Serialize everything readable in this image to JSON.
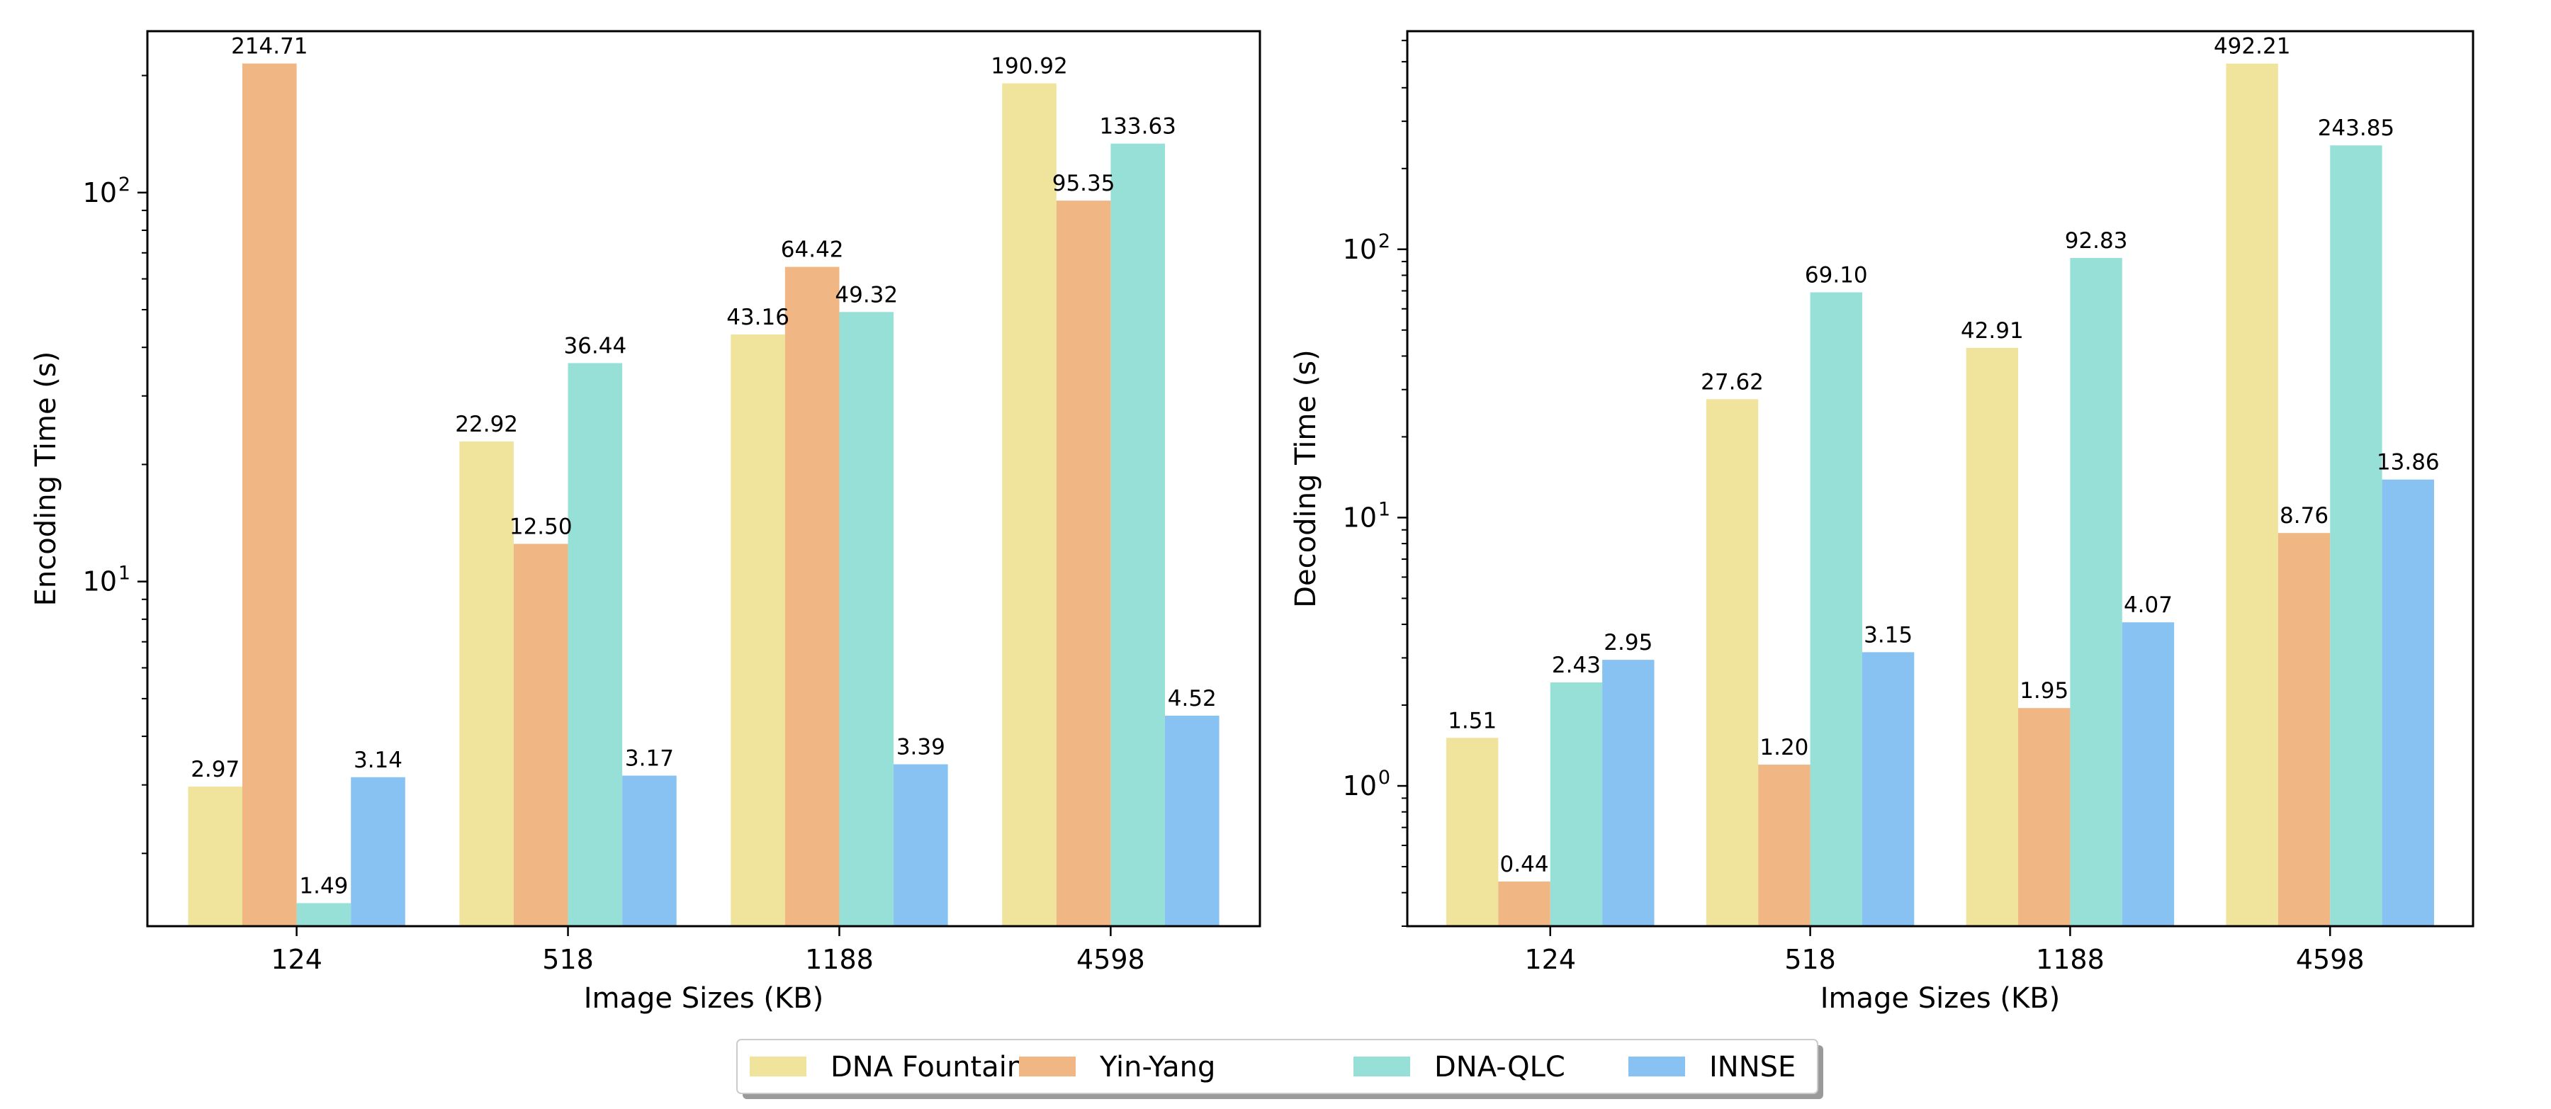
{
  "legend": {
    "placement": "bottom-center",
    "items": [
      {
        "label": "DNA Fountain",
        "color": "#F0E39C"
      },
      {
        "label": "Yin-Yang",
        "color": "#F0B683"
      },
      {
        "label": "DNA-QLC",
        "color": "#97E0D8"
      },
      {
        "label": "INNSE",
        "color": "#88C2F2"
      }
    ]
  },
  "chart_data": [
    {
      "type": "bar",
      "categories": [
        "124",
        "518",
        "1188",
        "4598"
      ],
      "xlabel": "Image Sizes (KB)",
      "ylabel": "Encoding Time (s)",
      "yscale": "log",
      "ylim": [
        1.3,
        260
      ],
      "ytick_values": [
        10,
        100
      ],
      "ytick_labels": [
        "10^1",
        "10^2"
      ],
      "grid": false,
      "series": [
        {
          "name": "DNA Fountain",
          "color": "#F0E39C",
          "values": [
            2.97,
            22.92,
            43.16,
            190.92
          ],
          "labels": [
            "2.97",
            "22.92",
            "43.16",
            "190.92"
          ]
        },
        {
          "name": "Yin-Yang",
          "color": "#F0B683",
          "values": [
            214.71,
            12.5,
            64.42,
            95.35
          ],
          "labels": [
            "214.71",
            "12.50",
            "64.42",
            "95.35"
          ]
        },
        {
          "name": "DNA-QLC",
          "color": "#97E0D8",
          "values": [
            1.49,
            36.44,
            49.32,
            133.63
          ],
          "labels": [
            "1.49",
            "36.44",
            "49.32",
            "133.63"
          ]
        },
        {
          "name": "INNSE",
          "color": "#88C2F2",
          "values": [
            3.14,
            3.17,
            3.39,
            4.52
          ],
          "labels": [
            "3.14",
            "3.17",
            "3.39",
            "4.52"
          ]
        }
      ]
    },
    {
      "type": "bar",
      "categories": [
        "124",
        "518",
        "1188",
        "4598"
      ],
      "xlabel": "Image Sizes (KB)",
      "ylabel": "Decoding Time (s)",
      "yscale": "log",
      "ylim": [
        0.3,
        650
      ],
      "ytick_values": [
        1,
        10,
        100
      ],
      "ytick_labels": [
        "10^0",
        "10^1",
        "10^2"
      ],
      "grid": false,
      "series": [
        {
          "name": "DNA Fountain",
          "color": "#F0E39C",
          "values": [
            1.51,
            27.62,
            42.91,
            492.21
          ],
          "labels": [
            "1.51",
            "27.62",
            "42.91",
            "492.21"
          ]
        },
        {
          "name": "Yin-Yang",
          "color": "#F0B683",
          "values": [
            0.44,
            1.2,
            1.95,
            8.76
          ],
          "labels": [
            "0.44",
            "1.20",
            "1.95",
            "8.76"
          ]
        },
        {
          "name": "DNA-QLC",
          "color": "#97E0D8",
          "values": [
            2.43,
            69.1,
            92.83,
            243.85
          ],
          "labels": [
            "2.43",
            "69.10",
            "92.83",
            "243.85"
          ]
        },
        {
          "name": "INNSE",
          "color": "#88C2F2",
          "values": [
            2.95,
            3.15,
            4.07,
            13.86
          ],
          "labels": [
            "2.95",
            "3.15",
            "4.07",
            "13.86"
          ]
        }
      ]
    }
  ]
}
